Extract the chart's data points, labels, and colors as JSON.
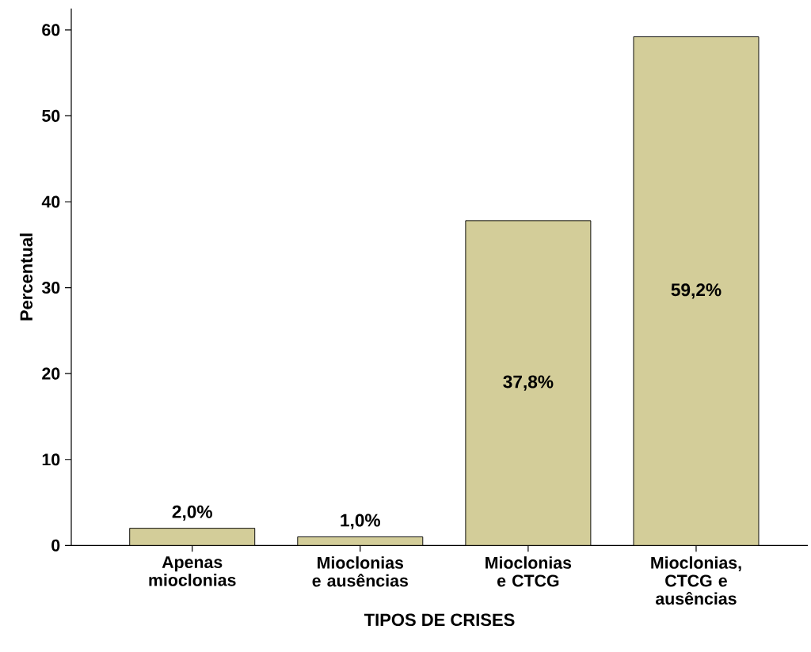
{
  "chart_data": {
    "type": "bar",
    "xlabel": "TIPOS DE CRISES",
    "ylabel": "Percentual",
    "categories": [
      "Apenas mioclonias",
      "Mioclonias e ausências",
      "Mioclonias e CTCG",
      "Mioclonias, CTCG e ausências"
    ],
    "values": [
      2.0,
      1.0,
      37.8,
      59.2
    ],
    "value_labels": [
      "2,0%",
      "1,0%",
      "37,8%",
      "59,2%"
    ],
    "color": "#d3cd99",
    "ylim": [
      0,
      62.5
    ],
    "yticks": [
      0,
      10,
      20,
      30,
      40,
      50,
      60
    ],
    "grid": false
  }
}
